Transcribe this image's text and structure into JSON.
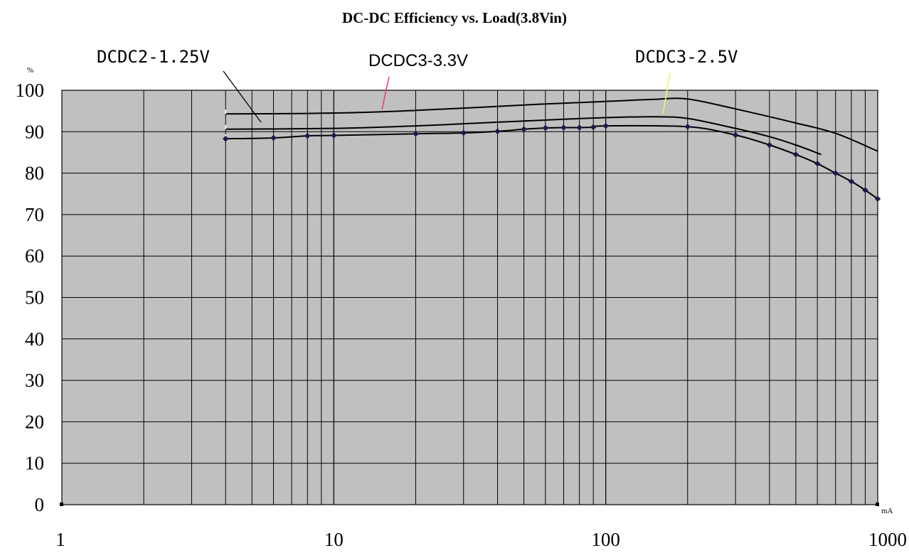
{
  "chart_data": {
    "type": "line",
    "title": "DC-DC    Efficiency    vs.    Load(3.8Vin)",
    "xlabel": "mA",
    "ylabel": "%",
    "xscale": "log",
    "xlim": [
      1,
      1000
    ],
    "ylim": [
      0,
      100
    ],
    "xticks": [
      1,
      10,
      100,
      1000
    ],
    "yticks": [
      0,
      10,
      20,
      30,
      40,
      50,
      60,
      70,
      80,
      90,
      100
    ],
    "grid": true,
    "plot_background": "#c0c0c0",
    "line_color": "#000000",
    "marker_color": "#1a1a4e",
    "series": [
      {
        "name": "DCDC3-3.3V",
        "leader_color": "#e8407a",
        "x": [
          4,
          8,
          15,
          30,
          60,
          100,
          150,
          200,
          300,
          500,
          700,
          1000
        ],
        "y": [
          94.3,
          94.4,
          94.8,
          95.7,
          96.7,
          97.3,
          97.8,
          97.9,
          95.5,
          92.1,
          89.6,
          85.3
        ],
        "markers": false
      },
      {
        "name": "DCDC3-2.5V",
        "leader_color": "#f5f060",
        "x": [
          4,
          10,
          20,
          40,
          70,
          100,
          150,
          200,
          300,
          400,
          500,
          620
        ],
        "y": [
          90.6,
          90.8,
          91.4,
          92.3,
          93.0,
          93.4,
          93.6,
          93.2,
          90.8,
          88.8,
          86.8,
          84.5
        ],
        "markers": false
      },
      {
        "name": "DCDC2-1.25V",
        "leader_color": "#000000",
        "x": [
          4,
          6,
          8,
          10,
          20,
          30,
          40,
          50,
          60,
          70,
          80,
          90,
          100,
          200,
          300,
          400,
          500,
          600,
          700,
          800,
          900,
          1000
        ],
        "y": [
          88.3,
          88.5,
          89.0,
          89.1,
          89.5,
          89.7,
          90.1,
          90.6,
          90.9,
          91.0,
          91.0,
          91.1,
          91.4,
          91.2,
          89.2,
          86.8,
          84.5,
          82.3,
          80.0,
          78.0,
          75.9,
          73.8
        ],
        "markers": true
      }
    ]
  }
}
